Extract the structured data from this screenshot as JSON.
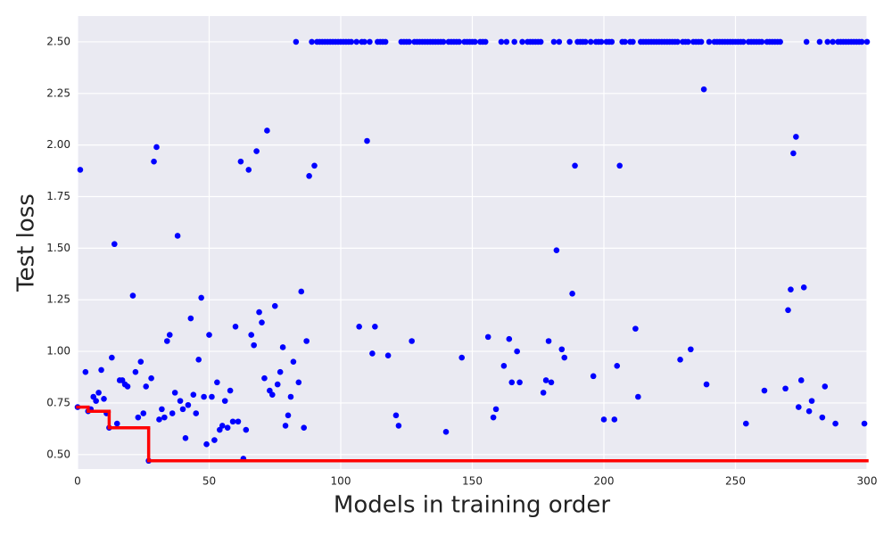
{
  "chart_data": {
    "type": "scatter",
    "xlabel": "Models in training order",
    "ylabel": "Test loss",
    "xlim": [
      0,
      300
    ],
    "ylim": [
      0.43,
      2.625
    ],
    "xticks": [
      0,
      50,
      100,
      150,
      200,
      250,
      300
    ],
    "yticks": [
      {
        "value": 0.5,
        "label": "0.50"
      },
      0.75,
      {
        "value": 1.0,
        "label": "1.00"
      },
      1.25,
      {
        "value": 1.5,
        "label": "1.50"
      },
      1.75,
      {
        "value": 2.0,
        "label": "2.00"
      },
      2.25,
      {
        "value": 2.5,
        "label": "2.50"
      }
    ],
    "grid": true,
    "series": [
      {
        "color": "#0000ff",
        "kind": "scatter",
        "x": [
          0,
          1,
          3,
          4,
          5,
          6,
          7,
          8,
          9,
          10,
          11,
          12,
          13,
          14,
          15,
          16,
          17,
          18,
          19,
          21,
          22,
          23,
          24,
          25,
          26,
          27,
          28,
          29,
          30,
          31,
          32,
          33,
          34,
          35,
          36,
          37,
          38,
          39,
          40,
          41,
          42,
          43,
          44,
          45,
          46,
          47,
          48,
          49,
          50,
          51,
          52,
          53,
          54,
          55,
          56,
          57,
          58,
          59,
          60,
          61,
          62,
          63,
          64,
          65,
          66,
          67,
          68,
          69,
          70,
          71,
          72,
          73,
          74,
          75,
          76,
          77,
          78,
          79,
          80,
          81,
          82,
          83,
          84,
          85,
          86,
          87,
          88,
          89,
          90,
          91,
          92,
          93,
          94,
          95,
          96,
          97,
          98,
          99,
          100,
          101,
          102,
          103,
          104,
          106,
          107,
          108,
          109,
          110,
          111,
          112,
          113,
          114,
          115,
          116,
          117,
          118,
          121,
          122,
          123,
          124,
          125,
          126,
          127,
          128,
          129,
          130,
          131,
          132,
          133,
          134,
          135,
          136,
          137,
          138,
          139,
          140,
          141,
          142,
          143,
          144,
          145,
          146,
          147,
          148,
          149,
          150,
          151,
          153,
          154,
          155,
          156,
          158,
          159,
          161,
          162,
          163,
          164,
          165,
          166,
          167,
          168,
          169,
          171,
          172,
          173,
          174,
          175,
          176,
          177,
          178,
          179,
          180,
          181,
          182,
          183,
          184,
          185,
          187,
          188,
          189,
          190,
          191,
          192,
          193,
          195,
          196,
          197,
          198,
          199,
          200,
          201,
          202,
          203,
          204,
          205,
          206,
          207,
          208,
          210,
          211,
          212,
          213,
          214,
          215,
          216,
          217,
          218,
          219,
          220,
          221,
          222,
          223,
          224,
          225,
          226,
          227,
          228,
          229,
          230,
          231,
          232,
          233,
          234,
          235,
          236,
          237,
          238,
          239,
          240,
          242,
          243,
          244,
          245,
          246,
          247,
          248,
          249,
          250,
          251,
          252,
          253,
          254,
          255,
          256,
          257,
          258,
          259,
          260,
          261,
          262,
          263,
          264,
          265,
          266,
          267,
          269,
          270,
          271,
          272,
          273,
          274,
          275,
          276,
          277,
          278,
          279,
          282,
          283,
          284,
          285,
          287,
          288,
          289,
          290,
          291,
          292,
          293,
          294,
          295,
          296,
          297,
          298,
          299,
          300
        ],
        "values": [
          0.73,
          1.88,
          0.9,
          0.71,
          0.72,
          0.78,
          0.76,
          0.8,
          0.91,
          0.77,
          0.7,
          0.63,
          0.97,
          1.52,
          0.65,
          0.86,
          0.86,
          0.84,
          0.83,
          1.27,
          0.9,
          0.68,
          0.95,
          0.7,
          0.83,
          0.47,
          0.87,
          1.92,
          1.99,
          0.67,
          0.72,
          0.68,
          1.05,
          1.08,
          0.7,
          0.8,
          1.56,
          0.76,
          0.72,
          0.58,
          0.74,
          1.16,
          0.79,
          0.7,
          0.96,
          1.26,
          0.78,
          0.55,
          1.08,
          0.78,
          0.57,
          0.85,
          0.62,
          0.64,
          0.76,
          0.63,
          0.81,
          0.66,
          1.12,
          0.66,
          1.92,
          0.48,
          0.62,
          1.88,
          1.08,
          1.03,
          1.97,
          1.19,
          1.14,
          0.87,
          2.07,
          0.81,
          0.79,
          1.22,
          0.84,
          0.9,
          1.02,
          0.64,
          0.69,
          0.78,
          0.95,
          2.5,
          0.85,
          1.29,
          0.63,
          1.05,
          1.85,
          2.5,
          1.9,
          2.5,
          2.5,
          2.5,
          2.5,
          2.5,
          2.5,
          2.5,
          2.5,
          2.5,
          2.5,
          2.5,
          2.5,
          2.5,
          2.5,
          2.5,
          1.12,
          2.5,
          2.5,
          2.02,
          2.5,
          0.99,
          1.12,
          2.5,
          2.5,
          2.5,
          2.5,
          0.98,
          0.69,
          0.64,
          2.5,
          2.5,
          2.5,
          2.5,
          1.05,
          2.5,
          2.5,
          2.5,
          2.5,
          2.5,
          2.5,
          2.5,
          2.5,
          2.5,
          2.5,
          2.5,
          2.5,
          0.61,
          2.5,
          2.5,
          2.5,
          2.5,
          2.5,
          0.97,
          2.5,
          2.5,
          2.5,
          2.5,
          2.5,
          2.5,
          2.5,
          2.5,
          1.07,
          0.68,
          0.72,
          2.5,
          0.93,
          2.5,
          1.06,
          0.85,
          2.5,
          1.0,
          0.85,
          2.5,
          2.5,
          2.5,
          2.5,
          2.5,
          2.5,
          2.5,
          0.8,
          0.86,
          1.05,
          0.85,
          2.5,
          1.49,
          2.5,
          1.01,
          0.97,
          2.5,
          1.28,
          1.9,
          2.5,
          2.5,
          2.5,
          2.5,
          2.5,
          0.88,
          2.5,
          2.5,
          2.5,
          0.67,
          2.5,
          2.5,
          2.5,
          0.67,
          0.93,
          1.9,
          2.5,
          2.5,
          2.5,
          2.5,
          1.11,
          0.78,
          2.5,
          2.5,
          2.5,
          2.5,
          2.5,
          2.5,
          2.5,
          2.5,
          2.5,
          2.5,
          2.5,
          2.5,
          2.5,
          2.5,
          2.5,
          0.96,
          2.5,
          2.5,
          2.5,
          1.01,
          2.5,
          2.5,
          2.5,
          2.5,
          2.27,
          0.84,
          2.5,
          2.5,
          2.5,
          2.5,
          2.5,
          2.5,
          2.5,
          2.5,
          2.5,
          2.5,
          2.5,
          2.5,
          2.5,
          0.65,
          2.5,
          2.5,
          2.5,
          2.5,
          2.5,
          2.5,
          0.81,
          2.5,
          2.5,
          2.5,
          2.5,
          2.5,
          2.5,
          0.82,
          1.2,
          1.3,
          1.96,
          2.04,
          0.73,
          0.86,
          1.31,
          2.5,
          0.71,
          0.76,
          2.5,
          0.68,
          0.83,
          2.5,
          2.5,
          0.65,
          2.5,
          2.5,
          2.5,
          2.5,
          2.5,
          2.5,
          2.5,
          2.5,
          2.5,
          2.5,
          0.65,
          2.5
        ]
      },
      {
        "color": "#ff0000",
        "kind": "step",
        "x": [
          0,
          4,
          12,
          27,
          300
        ],
        "values": [
          0.73,
          0.71,
          0.63,
          0.47,
          0.47
        ]
      }
    ]
  }
}
